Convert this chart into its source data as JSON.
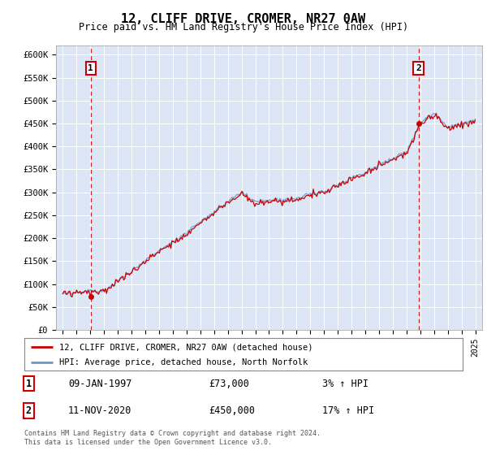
{
  "title": "12, CLIFF DRIVE, CROMER, NR27 0AW",
  "subtitle": "Price paid vs. HM Land Registry's House Price Index (HPI)",
  "background_color": "#dce6f5",
  "ylim": [
    0,
    620000
  ],
  "yticks": [
    0,
    50000,
    100000,
    150000,
    200000,
    250000,
    300000,
    350000,
    400000,
    450000,
    500000,
    550000,
    600000
  ],
  "ytick_labels": [
    "£0",
    "£50K",
    "£100K",
    "£150K",
    "£200K",
    "£250K",
    "£300K",
    "£350K",
    "£400K",
    "£450K",
    "£500K",
    "£550K",
    "£600K"
  ],
  "sale1_date": 1997.03,
  "sale1_price": 73000,
  "sale2_date": 2020.87,
  "sale2_price": 450000,
  "line_color_red": "#cc0000",
  "line_color_blue": "#6699cc",
  "marker_color": "#cc0000",
  "dashed_line_color": "#cc0000",
  "legend_label_red": "12, CLIFF DRIVE, CROMER, NR27 0AW (detached house)",
  "legend_label_blue": "HPI: Average price, detached house, North Norfolk",
  "annotation1_date": "09-JAN-1997",
  "annotation1_price": "£73,000",
  "annotation1_hpi": "3% ↑ HPI",
  "annotation2_date": "11-NOV-2020",
  "annotation2_price": "£450,000",
  "annotation2_hpi": "17% ↑ HPI",
  "footer": "Contains HM Land Registry data © Crown copyright and database right 2024.\nThis data is licensed under the Open Government Licence v3.0."
}
